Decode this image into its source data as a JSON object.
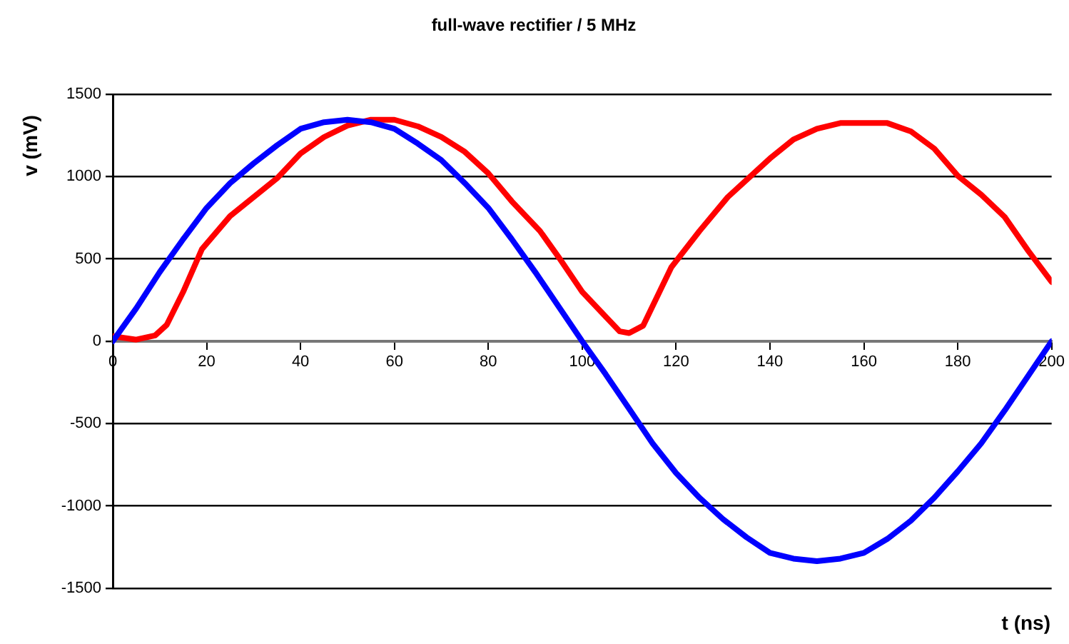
{
  "chart_data": {
    "type": "line",
    "title": "full-wave rectifier / 5 MHz",
    "xlabel": "t (ns)",
    "ylabel": "v (mV)",
    "xlim": [
      0,
      200
    ],
    "xticks": [
      0,
      20,
      40,
      60,
      80,
      100,
      120,
      140,
      160,
      180,
      200
    ],
    "ylim": [
      -1500,
      1500
    ],
    "yticks": [
      -1500,
      -1000,
      -500,
      0,
      500,
      1000,
      1500
    ],
    "grid": "y",
    "legend": false,
    "marker": "none",
    "line_style": "solid",
    "series": [
      {
        "color": "#0000ff",
        "x": [
          0,
          5,
          10,
          15,
          20,
          25,
          30,
          35,
          40,
          45,
          50,
          55,
          60,
          65,
          70,
          75,
          80,
          85,
          90,
          95,
          100,
          105,
          110,
          115,
          120,
          125,
          130,
          135,
          140,
          145,
          150,
          155,
          160,
          165,
          170,
          175,
          180,
          185,
          190,
          195,
          200
        ],
        "values": [
          0,
          200,
          420,
          620,
          810,
          960,
          1080,
          1190,
          1290,
          1330,
          1345,
          1330,
          1290,
          1200,
          1100,
          960,
          810,
          620,
          420,
          210,
          0,
          -200,
          -410,
          -620,
          -800,
          -950,
          -1080,
          -1190,
          -1285,
          -1320,
          -1335,
          -1320,
          -1285,
          -1200,
          -1090,
          -950,
          -790,
          -620,
          -420,
          -210,
          0
        ]
      },
      {
        "color": "#ff0000",
        "x": [
          0,
          5,
          9,
          11.5,
          15,
          19,
          25,
          35,
          40,
          45,
          50,
          55,
          60,
          65,
          70,
          75,
          80,
          85,
          91,
          95,
          100,
          105,
          108,
          110,
          113,
          119,
          125,
          131,
          140,
          145,
          150,
          155,
          160,
          165,
          170,
          175,
          180,
          185,
          190,
          195,
          200
        ],
        "values": [
          30,
          10,
          35,
          100,
          300,
          560,
          760,
          990,
          1140,
          1240,
          1310,
          1345,
          1345,
          1305,
          1240,
          1150,
          1020,
          850,
          670,
          510,
          300,
          150,
          60,
          50,
          95,
          450,
          670,
          875,
          1110,
          1225,
          1290,
          1325,
          1325,
          1325,
          1275,
          1170,
          1005,
          890,
          755,
          550,
          360
        ]
      }
    ]
  }
}
